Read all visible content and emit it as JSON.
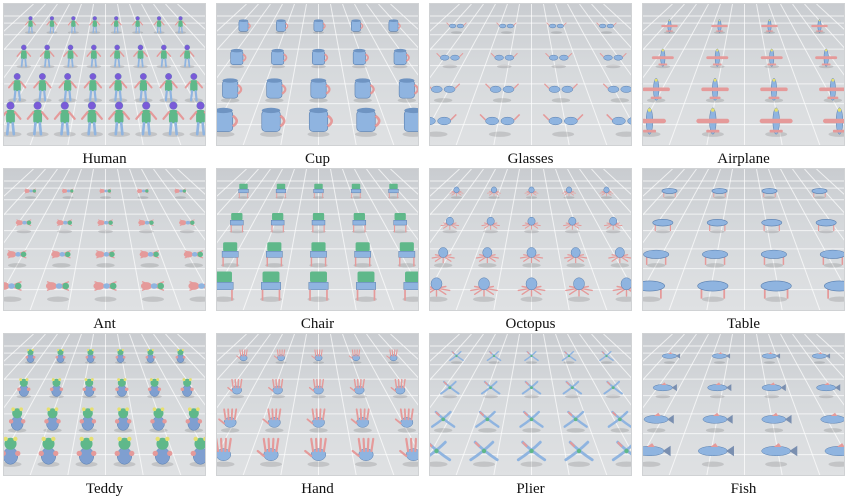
{
  "figure": {
    "categories": [
      {
        "label": "Human",
        "kind": "human"
      },
      {
        "label": "Cup",
        "kind": "cup"
      },
      {
        "label": "Glasses",
        "kind": "glasses"
      },
      {
        "label": "Airplane",
        "kind": "airplane"
      },
      {
        "label": "Ant",
        "kind": "ant"
      },
      {
        "label": "Chair",
        "kind": "chair"
      },
      {
        "label": "Octopus",
        "kind": "octopus"
      },
      {
        "label": "Table",
        "kind": "table"
      },
      {
        "label": "Teddy",
        "kind": "teddy"
      },
      {
        "label": "Hand",
        "kind": "hand"
      },
      {
        "label": "Plier",
        "kind": "plier"
      },
      {
        "label": "Fish",
        "kind": "fish"
      }
    ]
  },
  "colors": {
    "primary": "#8fb4e0",
    "secondary": "#e59a9a",
    "accent_green": "#5fb88a",
    "accent_yellow": "#e6e070"
  }
}
